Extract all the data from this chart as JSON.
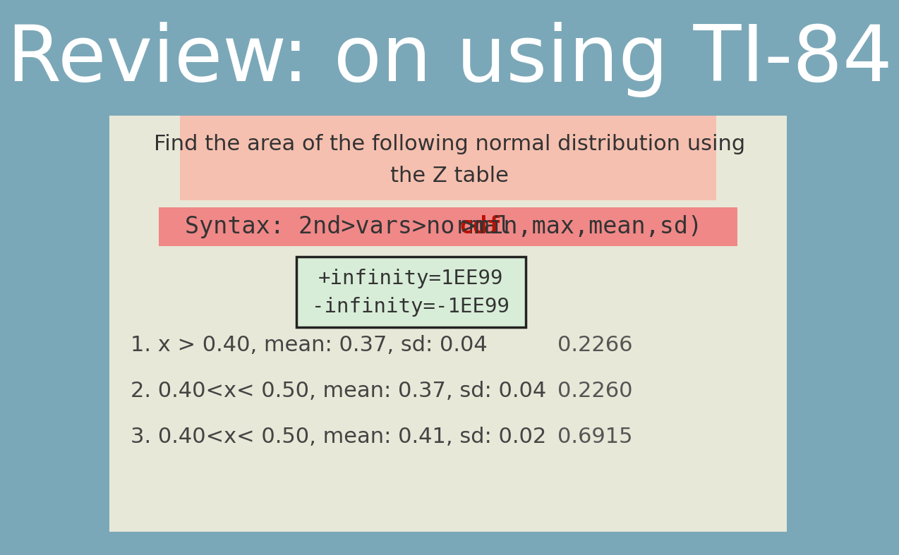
{
  "title": "Review: on using TI-84",
  "subtitle_line1": "Find the area of the following normal distribution using",
  "subtitle_line2": "the Z table",
  "syntax_before_cdf": "Syntax: 2nd>vars>normal",
  "syntax_cdf": "cdf",
  "syntax_after_cdf": ">min,max,mean,sd)",
  "infinity_line1": "+infinity=1EE99",
  "infinity_line2": "-infinity=-1EE99",
  "items": [
    {
      "label": "1. x > 0.40, mean: 0.37, sd: 0.04",
      "value": "0.2266"
    },
    {
      "label": "2. 0.40<x< 0.50, mean: 0.37, sd: 0.04",
      "value": "0.2260"
    },
    {
      "label": "3. 0.40<x< 0.50, mean: 0.41, sd: 0.02",
      "value": "0.6915"
    }
  ],
  "bg_color": "#7ba8b8",
  "content_bg": "#e8e8d8",
  "subtitle_bg": "#f5c0b0",
  "syntax_bg": "#f08888",
  "infinity_bg": "#d8edd8",
  "infinity_border": "#222222",
  "title_color": "#ffffff",
  "subtitle_color": "#333333",
  "syntax_color": "#333333",
  "syntax_cdf_color": "#bb1100",
  "infinity_color": "#333333",
  "item_color": "#444444",
  "value_color": "#555555",
  "title_fontsize": 80,
  "subtitle_fontsize": 22,
  "syntax_fontsize": 24,
  "infinity_fontsize": 21,
  "item_fontsize": 22,
  "value_fontsize": 22
}
